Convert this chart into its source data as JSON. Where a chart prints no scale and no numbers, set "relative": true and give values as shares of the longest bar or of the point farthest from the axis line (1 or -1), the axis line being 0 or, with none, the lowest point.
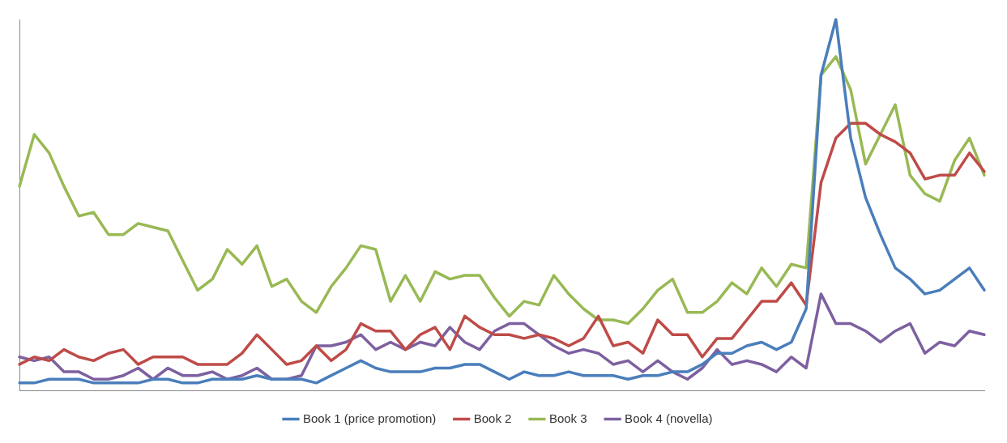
{
  "chart_data": {
    "type": "line",
    "relative": true,
    "legend": "bottom",
    "grid": false,
    "marker": "none",
    "line_style": "solid",
    "categories": [
      null,
      null,
      null,
      null,
      null,
      null,
      null,
      null,
      null,
      null,
      null,
      null,
      null,
      null,
      null,
      null,
      null,
      null,
      null,
      null,
      null,
      null,
      null,
      null,
      null,
      null,
      null,
      null,
      null,
      null,
      null,
      null,
      null,
      null,
      null,
      null,
      null,
      null,
      null,
      null,
      null,
      null,
      null,
      null,
      null,
      null,
      null,
      null,
      null,
      null,
      null,
      null,
      null,
      null,
      null,
      null,
      null,
      null,
      null,
      null,
      null,
      null,
      null,
      null,
      null,
      null
    ],
    "series": [
      {
        "name": "Book 1 (price promotion)",
        "color": "#4a7ebb",
        "values": [
          0.02,
          0.02,
          0.03,
          0.03,
          0.03,
          0.02,
          0.02,
          0.02,
          0.02,
          0.03,
          0.03,
          0.02,
          0.02,
          0.03,
          0.03,
          0.03,
          0.04,
          0.03,
          0.03,
          0.03,
          0.02,
          0.04,
          0.06,
          0.08,
          0.06,
          0.05,
          0.05,
          0.05,
          0.06,
          0.06,
          0.07,
          0.07,
          0.05,
          0.03,
          0.05,
          0.04,
          0.04,
          0.05,
          0.04,
          0.04,
          0.04,
          0.03,
          0.04,
          0.04,
          0.05,
          0.05,
          0.07,
          0.1,
          0.1,
          0.12,
          0.13,
          0.11,
          0.13,
          0.22,
          0.85,
          1,
          0.68,
          0.52,
          0.42,
          0.33,
          0.3,
          0.26,
          0.27,
          0.3,
          0.33,
          0.27
        ]
      },
      {
        "name": "Book 2",
        "color": "#be4b48",
        "values": [
          0.07,
          0.09,
          0.08,
          0.11,
          0.09,
          0.08,
          0.1,
          0.11,
          0.07,
          0.09,
          0.09,
          0.09,
          0.07,
          0.07,
          0.07,
          0.1,
          0.15,
          0.11,
          0.07,
          0.08,
          0.12,
          0.08,
          0.11,
          0.18,
          0.16,
          0.16,
          0.11,
          0.15,
          0.17,
          0.11,
          0.2,
          0.17,
          0.15,
          0.15,
          0.14,
          0.15,
          0.14,
          0.12,
          0.14,
          0.2,
          0.12,
          0.13,
          0.1,
          0.19,
          0.15,
          0.15,
          0.09,
          0.14,
          0.14,
          0.19,
          0.24,
          0.24,
          0.29,
          0.23,
          0.56,
          0.68,
          0.72,
          0.72,
          0.69,
          0.67,
          0.64,
          0.57,
          0.58,
          0.58,
          0.64,
          0.59
        ]
      },
      {
        "name": "Book 3",
        "color": "#98b954",
        "values": [
          0.55,
          0.69,
          0.64,
          0.55,
          0.47,
          0.48,
          0.42,
          0.42,
          0.45,
          0.44,
          0.43,
          0.35,
          0.27,
          0.3,
          0.38,
          0.34,
          0.39,
          0.28,
          0.3,
          0.24,
          0.21,
          0.28,
          0.33,
          0.39,
          0.38,
          0.24,
          0.31,
          0.24,
          0.32,
          0.3,
          0.31,
          0.31,
          0.25,
          0.2,
          0.24,
          0.23,
          0.31,
          0.26,
          0.22,
          0.19,
          0.19,
          0.18,
          0.22,
          0.27,
          0.3,
          0.21,
          0.21,
          0.24,
          0.29,
          0.26,
          0.33,
          0.28,
          0.34,
          0.33,
          0.85,
          0.9,
          0.81,
          0.61,
          0.69,
          0.77,
          0.58,
          0.53,
          0.51,
          0.62,
          0.68,
          0.58
        ]
      },
      {
        "name": "Book 4 (novella)",
        "color": "#7d60a0",
        "values": [
          0.09,
          0.08,
          0.09,
          0.05,
          0.05,
          0.03,
          0.03,
          0.04,
          0.06,
          0.03,
          0.06,
          0.04,
          0.04,
          0.05,
          0.03,
          0.04,
          0.06,
          0.03,
          0.03,
          0.04,
          0.12,
          0.12,
          0.13,
          0.15,
          0.11,
          0.13,
          0.11,
          0.13,
          0.12,
          0.17,
          0.13,
          0.11,
          0.16,
          0.18,
          0.18,
          0.15,
          0.12,
          0.1,
          0.11,
          0.1,
          0.07,
          0.08,
          0.05,
          0.08,
          0.05,
          0.03,
          0.06,
          0.11,
          0.07,
          0.08,
          0.07,
          0.05,
          0.09,
          0.06,
          0.26,
          0.18,
          0.18,
          0.16,
          0.13,
          0.16,
          0.18,
          0.1,
          0.13,
          0.12,
          0.16,
          0.15
        ]
      }
    ]
  }
}
